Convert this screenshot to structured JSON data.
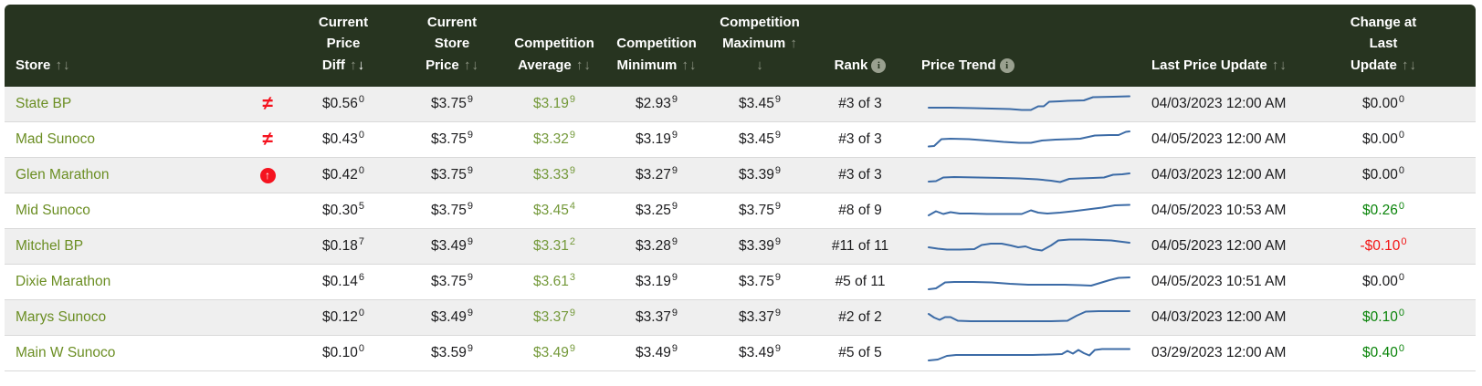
{
  "colors": {
    "header_bg": "#273420",
    "store_link_green": "#6B8E23",
    "competition_avg_green": "#74993a",
    "positive_green": "#0a840a",
    "negative_red": "#f21414",
    "flag_red": "#f5131f",
    "sparkline_blue": "#3c6ba6",
    "alt_row_bg": "#efefef"
  },
  "columns": {
    "store": {
      "label": "Store"
    },
    "flag": {
      "label": ""
    },
    "current_price_diff": {
      "label": "Current Price Diff"
    },
    "current_store_price": {
      "label": "Current Store Price"
    },
    "competition_average": {
      "label": "Competition Average"
    },
    "competition_minimum": {
      "label": "Competition Minimum"
    },
    "competition_maximum": {
      "label": "Competition Maximum"
    },
    "rank": {
      "label": "Rank",
      "info_icon": "i"
    },
    "price_trend": {
      "label": "Price Trend",
      "info_icon": "i"
    },
    "last_price_update": {
      "label": "Last Price Update"
    },
    "change_at_last_update": {
      "label": "Change at Last Update"
    }
  },
  "sort": {
    "active_column": "current_price_diff",
    "direction": "desc"
  },
  "rows": [
    {
      "store": "State BP",
      "flag": "not-equal",
      "current_price_diff": {
        "dollars": "$0.56",
        "sup": "0"
      },
      "current_store_price": {
        "dollars": "$3.75",
        "sup": "9"
      },
      "competition_average": {
        "dollars": "$3.19",
        "sup": "9"
      },
      "competition_minimum": {
        "dollars": "$2.93",
        "sup": "9"
      },
      "competition_maximum": {
        "dollars": "$3.45",
        "sup": "9"
      },
      "rank": "#3 of 3",
      "trend_points": [
        [
          6,
          17
        ],
        [
          30,
          17
        ],
        [
          55,
          17.5
        ],
        [
          75,
          18
        ],
        [
          95,
          18.5
        ],
        [
          108,
          19.5
        ],
        [
          118,
          19.5
        ],
        [
          126,
          15.5
        ],
        [
          132,
          15.5
        ],
        [
          138,
          10.5
        ],
        [
          150,
          10
        ],
        [
          158,
          9.5
        ],
        [
          176,
          9
        ],
        [
          186,
          5.5
        ],
        [
          208,
          5
        ],
        [
          226,
          4.5
        ]
      ],
      "last_price_update": "04/03/2023 12:00 AM",
      "change_at_last_update": {
        "dollars": "$0.00",
        "sup": "0",
        "tone": "neutral"
      }
    },
    {
      "store": "Mad Sunoco",
      "flag": "not-equal",
      "current_price_diff": {
        "dollars": "$0.43",
        "sup": "0"
      },
      "current_store_price": {
        "dollars": "$3.75",
        "sup": "9"
      },
      "competition_average": {
        "dollars": "$3.32",
        "sup": "9"
      },
      "competition_minimum": {
        "dollars": "$3.19",
        "sup": "9"
      },
      "competition_maximum": {
        "dollars": "$3.45",
        "sup": "9"
      },
      "rank": "#3 of 3",
      "trend_points": [
        [
          6,
          20.5
        ],
        [
          12,
          20
        ],
        [
          20,
          12.5
        ],
        [
          30,
          12
        ],
        [
          50,
          12.5
        ],
        [
          70,
          14
        ],
        [
          88,
          15.5
        ],
        [
          105,
          16.5
        ],
        [
          118,
          16.5
        ],
        [
          130,
          14
        ],
        [
          145,
          13
        ],
        [
          160,
          12.5
        ],
        [
          172,
          12
        ],
        [
          188,
          8.5
        ],
        [
          204,
          8
        ],
        [
          214,
          8
        ],
        [
          222,
          4.5
        ],
        [
          226,
          4
        ]
      ],
      "last_price_update": "04/05/2023 12:00 AM",
      "change_at_last_update": {
        "dollars": "$0.00",
        "sup": "0",
        "tone": "neutral"
      }
    },
    {
      "store": "Glen Marathon",
      "flag": "arrow-up-circle",
      "current_price_diff": {
        "dollars": "$0.42",
        "sup": "0"
      },
      "current_store_price": {
        "dollars": "$3.75",
        "sup": "9"
      },
      "competition_average": {
        "dollars": "$3.33",
        "sup": "9"
      },
      "competition_minimum": {
        "dollars": "$3.27",
        "sup": "9"
      },
      "competition_maximum": {
        "dollars": "$3.39",
        "sup": "9"
      },
      "rank": "#3 of 3",
      "trend_points": [
        [
          6,
          20
        ],
        [
          14,
          19.5
        ],
        [
          22,
          15.5
        ],
        [
          34,
          15
        ],
        [
          60,
          15.5
        ],
        [
          85,
          16
        ],
        [
          105,
          16.5
        ],
        [
          125,
          17.5
        ],
        [
          140,
          19
        ],
        [
          150,
          20.5
        ],
        [
          160,
          17
        ],
        [
          172,
          16.5
        ],
        [
          186,
          16
        ],
        [
          198,
          15.5
        ],
        [
          208,
          12.5
        ],
        [
          218,
          12
        ],
        [
          226,
          11
        ]
      ],
      "last_price_update": "04/03/2023 12:00 AM",
      "change_at_last_update": {
        "dollars": "$0.00",
        "sup": "0",
        "tone": "neutral"
      }
    },
    {
      "store": "Mid Sunoco",
      "flag": "",
      "current_price_diff": {
        "dollars": "$0.30",
        "sup": "5"
      },
      "current_store_price": {
        "dollars": "$3.75",
        "sup": "9"
      },
      "competition_average": {
        "dollars": "$3.45",
        "sup": "4"
      },
      "competition_minimum": {
        "dollars": "$3.25",
        "sup": "9"
      },
      "competition_maximum": {
        "dollars": "$3.75",
        "sup": "9"
      },
      "rank": "#8 of 9",
      "trend_points": [
        [
          6,
          18
        ],
        [
          14,
          13.5
        ],
        [
          22,
          16.5
        ],
        [
          30,
          14.5
        ],
        [
          40,
          16
        ],
        [
          52,
          16
        ],
        [
          70,
          16.5
        ],
        [
          90,
          16.5
        ],
        [
          108,
          16.5
        ],
        [
          118,
          12.5
        ],
        [
          126,
          15
        ],
        [
          136,
          16
        ],
        [
          150,
          15
        ],
        [
          164,
          13.5
        ],
        [
          180,
          11.5
        ],
        [
          196,
          9.5
        ],
        [
          210,
          7
        ],
        [
          226,
          6.5
        ]
      ],
      "last_price_update": "04/05/2023 10:53 AM",
      "change_at_last_update": {
        "dollars": "$0.26",
        "sup": "0",
        "tone": "pos"
      }
    },
    {
      "store": "Mitchel BP",
      "flag": "",
      "current_price_diff": {
        "dollars": "$0.18",
        "sup": "7"
      },
      "current_store_price": {
        "dollars": "$3.49",
        "sup": "9"
      },
      "competition_average": {
        "dollars": "$3.31",
        "sup": "2"
      },
      "competition_minimum": {
        "dollars": "$3.28",
        "sup": "9"
      },
      "competition_maximum": {
        "dollars": "$3.39",
        "sup": "9"
      },
      "rank": "#11 of 11",
      "trend_points": [
        [
          6,
          14
        ],
        [
          16,
          15.5
        ],
        [
          26,
          16.5
        ],
        [
          40,
          16.5
        ],
        [
          56,
          16
        ],
        [
          64,
          11.5
        ],
        [
          74,
          10
        ],
        [
          86,
          10
        ],
        [
          96,
          12
        ],
        [
          104,
          14
        ],
        [
          112,
          13
        ],
        [
          120,
          16
        ],
        [
          130,
          17.5
        ],
        [
          140,
          12
        ],
        [
          148,
          6.5
        ],
        [
          160,
          5.5
        ],
        [
          176,
          5.5
        ],
        [
          192,
          6
        ],
        [
          206,
          6.5
        ],
        [
          218,
          8
        ],
        [
          226,
          9
        ]
      ],
      "last_price_update": "04/05/2023 12:00 AM",
      "change_at_last_update": {
        "dollars": "-$0.10",
        "sup": "0",
        "tone": "neg"
      }
    },
    {
      "store": "Dixie Marathon",
      "flag": "",
      "current_price_diff": {
        "dollars": "$0.14",
        "sup": "6"
      },
      "current_store_price": {
        "dollars": "$3.75",
        "sup": "9"
      },
      "competition_average": {
        "dollars": "$3.61",
        "sup": "3"
      },
      "competition_minimum": {
        "dollars": "$3.19",
        "sup": "9"
      },
      "competition_maximum": {
        "dollars": "$3.75",
        "sup": "9"
      },
      "rank": "#5 of 11",
      "trend_points": [
        [
          6,
          21
        ],
        [
          14,
          20
        ],
        [
          24,
          13.5
        ],
        [
          34,
          13
        ],
        [
          55,
          13
        ],
        [
          75,
          13.5
        ],
        [
          95,
          15
        ],
        [
          115,
          16
        ],
        [
          135,
          16
        ],
        [
          155,
          16
        ],
        [
          172,
          16.5
        ],
        [
          184,
          17
        ],
        [
          194,
          14
        ],
        [
          204,
          11
        ],
        [
          214,
          8.5
        ],
        [
          226,
          8
        ]
      ],
      "last_price_update": "04/05/2023 10:51 AM",
      "change_at_last_update": {
        "dollars": "$0.00",
        "sup": "0",
        "tone": "neutral"
      }
    },
    {
      "store": "Marys Sunoco",
      "flag": "",
      "current_price_diff": {
        "dollars": "$0.12",
        "sup": "0"
      },
      "current_store_price": {
        "dollars": "$3.49",
        "sup": "9"
      },
      "competition_average": {
        "dollars": "$3.37",
        "sup": "9"
      },
      "competition_minimum": {
        "dollars": "$3.37",
        "sup": "9"
      },
      "competition_maximum": {
        "dollars": "$3.37",
        "sup": "9"
      },
      "rank": "#2 of 2",
      "trend_points": [
        [
          6,
          9
        ],
        [
          12,
          13
        ],
        [
          18,
          15.5
        ],
        [
          24,
          12.5
        ],
        [
          30,
          12.5
        ],
        [
          38,
          16.5
        ],
        [
          52,
          17
        ],
        [
          80,
          17
        ],
        [
          110,
          17
        ],
        [
          140,
          17
        ],
        [
          158,
          16.5
        ],
        [
          168,
          11
        ],
        [
          178,
          6.5
        ],
        [
          192,
          6
        ],
        [
          226,
          6
        ]
      ],
      "last_price_update": "04/03/2023 12:00 AM",
      "change_at_last_update": {
        "dollars": "$0.10",
        "sup": "0",
        "tone": "pos"
      }
    },
    {
      "store": "Main W Sunoco",
      "flag": "",
      "current_price_diff": {
        "dollars": "$0.10",
        "sup": "0"
      },
      "current_store_price": {
        "dollars": "$3.59",
        "sup": "9"
      },
      "competition_average": {
        "dollars": "$3.49",
        "sup": "9"
      },
      "competition_minimum": {
        "dollars": "$3.49",
        "sup": "9"
      },
      "competition_maximum": {
        "dollars": "$3.49",
        "sup": "9"
      },
      "rank": "#5 of 5",
      "trend_points": [
        [
          6,
          21
        ],
        [
          16,
          20
        ],
        [
          26,
          16
        ],
        [
          36,
          15
        ],
        [
          60,
          15
        ],
        [
          90,
          15
        ],
        [
          120,
          15
        ],
        [
          140,
          14.5
        ],
        [
          152,
          14
        ],
        [
          158,
          10.5
        ],
        [
          164,
          13.5
        ],
        [
          170,
          9.5
        ],
        [
          176,
          13
        ],
        [
          182,
          15.5
        ],
        [
          188,
          9.5
        ],
        [
          196,
          8.5
        ],
        [
          210,
          8.5
        ],
        [
          226,
          8.5
        ]
      ],
      "last_price_update": "03/29/2023 12:00 AM",
      "change_at_last_update": {
        "dollars": "$0.40",
        "sup": "0",
        "tone": "pos"
      }
    }
  ]
}
